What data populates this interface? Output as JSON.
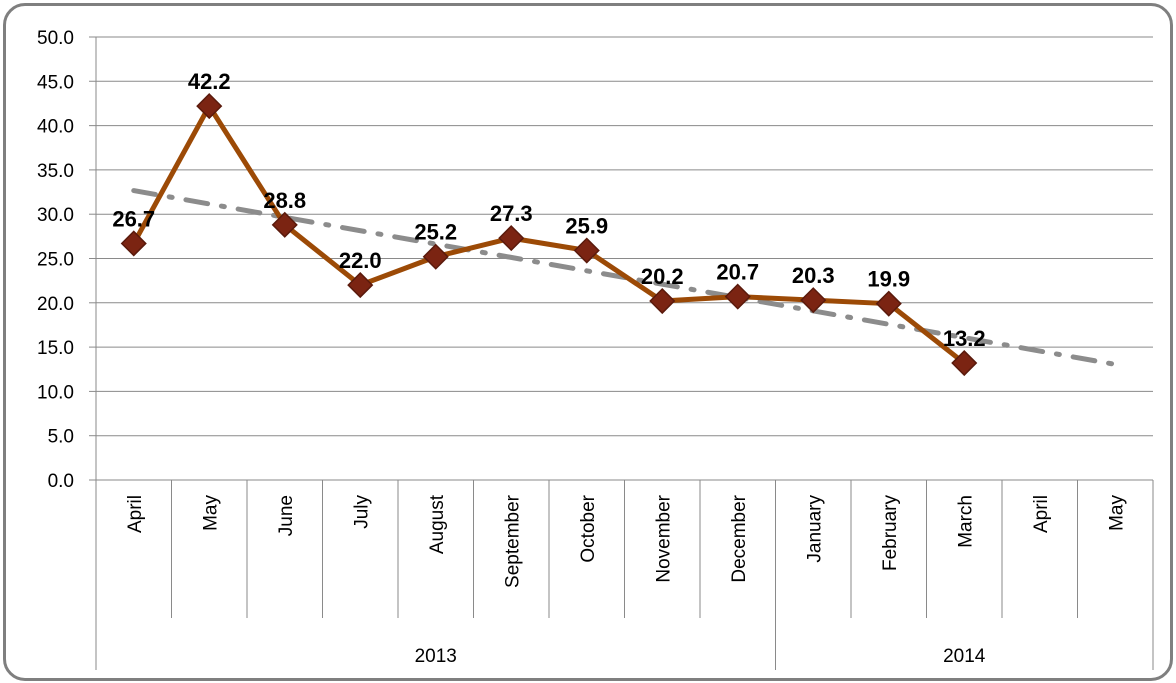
{
  "chart_data": {
    "type": "line",
    "x": [
      "April",
      "May",
      "June",
      "July",
      "August",
      "September",
      "October",
      "November",
      "December",
      "January",
      "February",
      "March",
      "April",
      "May"
    ],
    "groups": [
      {
        "label": "2013",
        "count": 9
      },
      {
        "label": "2014",
        "count": 5
      }
    ],
    "series": [
      {
        "values": [
          26.7,
          42.2,
          28.8,
          22.0,
          25.2,
          27.3,
          25.9,
          20.2,
          20.7,
          20.3,
          19.9,
          13.2,
          null,
          null
        ],
        "data_labels": [
          "26.7",
          "42.2",
          "28.8",
          "22.0",
          "25.2",
          "27.3",
          "25.9",
          "20.2",
          "20.7",
          "20.3",
          "19.9",
          "13.2",
          "",
          ""
        ],
        "color": "#9c4a06",
        "marker": "diamond",
        "marker_color": "#7b2412"
      }
    ],
    "trendline": {
      "type": "linear",
      "style": "dash-dot",
      "color": "#8c8c8c"
    },
    "ylim": [
      0,
      50
    ],
    "yticks": [
      "0.0",
      "5.0",
      "10.0",
      "15.0",
      "20.0",
      "25.0",
      "30.0",
      "35.0",
      "40.0",
      "45.0",
      "50.0"
    ],
    "grid": true,
    "legend": "none"
  }
}
